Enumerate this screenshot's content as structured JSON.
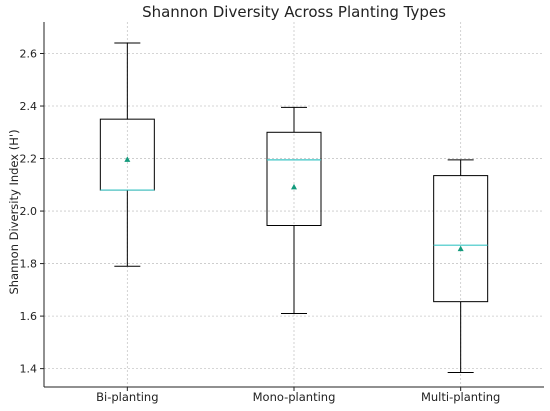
{
  "chart_data": {
    "type": "box",
    "title": "Shannon Diversity Across Planting Types",
    "xlabel": "",
    "ylabel": "Shannon Diversity Index (H')",
    "ylim": [
      1.33,
      2.72
    ],
    "yticks": [
      1.4,
      1.6,
      1.8,
      2.0,
      2.2,
      2.4,
      2.6
    ],
    "grid": true,
    "categories": [
      "Bi-planting",
      "Mono-planting",
      "Multi-planting"
    ],
    "boxes": [
      {
        "name": "Bi-planting",
        "whisker_low": 1.79,
        "q1": 2.08,
        "median": 2.08,
        "q3": 2.35,
        "whisker_high": 2.64,
        "mean": 2.195
      },
      {
        "name": "Mono-planting",
        "whisker_low": 1.61,
        "q1": 1.945,
        "median": 2.195,
        "q3": 2.3,
        "whisker_high": 2.395,
        "mean": 2.09
      },
      {
        "name": "Multi-planting",
        "whisker_low": 1.385,
        "q1": 1.655,
        "median": 1.87,
        "q3": 2.135,
        "whisker_high": 2.195,
        "mean": 1.855
      }
    ],
    "colors": {
      "box": "#000000",
      "median": "#3cc6c6",
      "mean": "#129a7c",
      "grid": "#c8c8c8"
    }
  }
}
